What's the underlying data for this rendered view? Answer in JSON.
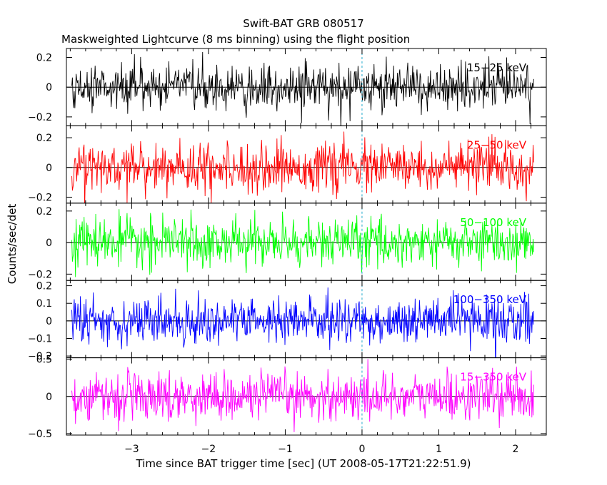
{
  "chart_data": {
    "type": "line",
    "title": "Swift-BAT GRB 080517",
    "subtitle": "Maskweighted Lightcurve (8 ms binning) using the flight position",
    "xlabel": "Time since BAT trigger time [sec] (UT 2008-05-17T21:22:51.9)",
    "ylabel": "Counts/sec/det",
    "xlim": [
      -3.85,
      2.4
    ],
    "x_start": -3.78,
    "x_end": 2.24,
    "bin_sec": 0.008,
    "x_ticks": [
      -3,
      -2,
      -1,
      0,
      1,
      2
    ],
    "x_tick_labels": [
      "−3",
      "−2",
      "−1",
      "0",
      "1",
      "2"
    ],
    "trigger_marker_x": 0,
    "panels": [
      {
        "name": "15-25 keV",
        "label": "15−25 keV",
        "color": "#000000",
        "ylim": [
          -0.26,
          0.26
        ],
        "noise_sigma": 0.075,
        "y_ticks": [
          0.2,
          0,
          -0.2
        ],
        "y_tick_labels": [
          "0.2",
          "0",
          "−0.2"
        ]
      },
      {
        "name": "25-50 keV",
        "label": "25−50 keV",
        "color": "#ff0000",
        "ylim": [
          -0.24,
          0.28
        ],
        "noise_sigma": 0.08,
        "y_ticks": [
          0.2,
          0,
          -0.2
        ],
        "y_tick_labels": [
          "0.2",
          "0",
          "−0.2"
        ]
      },
      {
        "name": "50-100 keV",
        "label": "50−100 keV",
        "color": "#00ff00",
        "ylim": [
          -0.24,
          0.25
        ],
        "noise_sigma": 0.075,
        "y_ticks": [
          0.2,
          0,
          -0.2
        ],
        "y_tick_labels": [
          "0.2",
          "0",
          "−0.2"
        ]
      },
      {
        "name": "100-350 keV",
        "label": "100−350 keV",
        "color": "#0000ff",
        "ylim": [
          -0.21,
          0.23
        ],
        "noise_sigma": 0.065,
        "y_ticks": [
          0.2,
          0.1,
          0,
          -0.1,
          -0.2
        ],
        "y_tick_labels": [
          "0.2",
          "0.1",
          "0",
          "−0.1",
          "−0.2"
        ]
      },
      {
        "name": "15-350 keV",
        "label": "15−350 keV",
        "color": "#ff00ff",
        "ylim": [
          -0.52,
          0.52
        ],
        "noise_sigma": 0.16,
        "y_ticks": [
          0.5,
          0,
          -0.5
        ],
        "y_tick_labels": [
          "0.5",
          "0",
          "−0.5"
        ]
      }
    ]
  }
}
